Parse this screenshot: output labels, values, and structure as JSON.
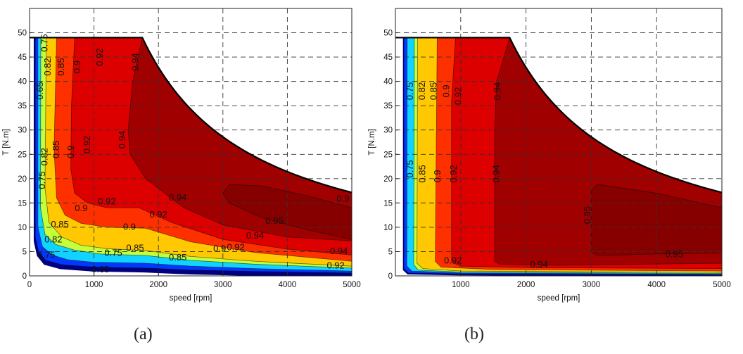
{
  "figure": {
    "captions": [
      "(a)",
      "(b)"
    ]
  },
  "colors": {
    "levels": [
      0.65,
      0.75,
      0.82,
      0.85,
      0.9,
      0.92,
      0.94,
      0.95
    ],
    "fills": [
      "#00007F",
      "#0038FF",
      "#10D4FF",
      "#C4FF3A",
      "#FFC800",
      "#FF3000",
      "#DC0000",
      "#A00000",
      "#860000"
    ],
    "envelope": "#000000"
  },
  "chart_data": [
    {
      "type": "contourf",
      "panel": "(a)",
      "title": "",
      "xlabel": "speed [rpm]",
      "ylabel": "T  [N.m]",
      "xlim": [
        0,
        5000
      ],
      "ylim": [
        0,
        55
      ],
      "xticks": [
        0,
        1000,
        2000,
        3000,
        4000,
        5000
      ],
      "yticks": [
        0,
        5,
        10,
        15,
        20,
        25,
        30,
        35,
        40,
        45,
        50
      ],
      "grid": true,
      "envelope": {
        "description": "max torque 49 N.m up to base speed, then constant power",
        "base_speed": 1750,
        "max_torque": 49,
        "points": [
          [
            0,
            49
          ],
          [
            1750,
            49
          ],
          [
            2000,
            42.9
          ],
          [
            2500,
            34.3
          ],
          [
            3000,
            28.6
          ],
          [
            3500,
            24.5
          ],
          [
            4000,
            21.4
          ],
          [
            4500,
            19.1
          ],
          [
            5000,
            17.2
          ]
        ]
      },
      "contour_levels": [
        0.65,
        0.75,
        0.82,
        0.85,
        0.9,
        0.92,
        0.94,
        0.95
      ],
      "regions": [
        {
          "level": 0.65,
          "boundary": [
            [
              90,
              49
            ],
            [
              90,
              8
            ],
            [
              140,
              5
            ],
            [
              250,
              3.2
            ],
            [
              500,
              2.3
            ],
            [
              1000,
              1.8
            ],
            [
              1800,
              1.6
            ],
            [
              2500,
              1.2
            ],
            [
              3500,
              0.9
            ],
            [
              5000,
              0.6
            ]
          ]
        },
        {
          "level": 0.75,
          "boundary": [
            [
              130,
              49
            ],
            [
              130,
              10
            ],
            [
              200,
              6
            ],
            [
              350,
              4.3
            ],
            [
              600,
              3.3
            ],
            [
              1000,
              2.8
            ],
            [
              1800,
              2.6
            ],
            [
              2500,
              2
            ],
            [
              3500,
              1.5
            ],
            [
              5000,
              1
            ]
          ]
        },
        {
          "level": 0.82,
          "boundary": [
            [
              175,
              49
            ],
            [
              170,
              14
            ],
            [
              240,
              8.5
            ],
            [
              400,
              6.5
            ],
            [
              700,
              5.3
            ],
            [
              1100,
              4.5
            ],
            [
              1800,
              4.2
            ],
            [
              2500,
              3.2
            ],
            [
              3500,
              2.4
            ],
            [
              5000,
              1.6
            ]
          ]
        },
        {
          "level": 0.85,
          "boundary": [
            [
              260,
              49
            ],
            [
              240,
              18
            ],
            [
              300,
              11
            ],
            [
              500,
              8
            ],
            [
              800,
              6.3
            ],
            [
              1200,
              5.6
            ],
            [
              1800,
              5.2
            ],
            [
              2500,
              4
            ],
            [
              3500,
              3
            ],
            [
              5000,
              2
            ]
          ]
        },
        {
          "level": 0.9,
          "boundary": [
            [
              420,
              49
            ],
            [
              380,
              26
            ],
            [
              420,
              16
            ],
            [
              550,
              12.5
            ],
            [
              800,
              10.8
            ],
            [
              1200,
              10
            ],
            [
              1800,
              9.8
            ],
            [
              2500,
              7
            ],
            [
              3500,
              4.8
            ],
            [
              5000,
              3
            ]
          ]
        },
        {
          "level": 0.92,
          "boundary": [
            [
              700,
              49
            ],
            [
              650,
              35
            ],
            [
              640,
              22
            ],
            [
              700,
              17
            ],
            [
              900,
              15
            ],
            [
              1200,
              14
            ],
            [
              1700,
              14
            ],
            [
              2200,
              11
            ],
            [
              3000,
              7.5
            ],
            [
              4000,
              5.5
            ],
            [
              5000,
              4.3
            ]
          ]
        },
        {
          "level": 0.94,
          "boundary": [
            [
              1750,
              49
            ],
            [
              1600,
              40
            ],
            [
              1530,
              30
            ],
            [
              1560,
              25
            ],
            [
              1800,
              20
            ],
            [
              2000,
              18
            ],
            [
              2400,
              14
            ],
            [
              3000,
              10.5
            ],
            [
              4000,
              8
            ],
            [
              5000,
              7.2
            ]
          ]
        },
        {
          "level": 0.95,
          "boundary": [
            [
              3000,
              17
            ],
            [
              3100,
              18.8
            ],
            [
              3600,
              18.5
            ],
            [
              4300,
              16.5
            ],
            [
              5000,
              14
            ],
            [
              5000,
              7.5
            ],
            [
              4300,
              9.5
            ],
            [
              3600,
              12
            ],
            [
              3100,
              15
            ]
          ]
        }
      ],
      "labels": [
        {
          "text": "0.65",
          "x": 1100,
          "y": 1.2
        },
        {
          "text": "0.75",
          "x": 1300,
          "y": 3.5
        },
        {
          "text": "0.85",
          "x": 1550,
          "y": 5.6
        },
        {
          "text": "0.9",
          "x": 1550,
          "y": 10
        },
        {
          "text": "0.92",
          "x": 1200,
          "y": 15.2
        },
        {
          "text": "0.9",
          "x": 800,
          "y": 13.8
        },
        {
          "text": "0.92",
          "x": 2000,
          "y": 12.5
        },
        {
          "text": "0.94",
          "x": 2300,
          "y": 16
        },
        {
          "text": "0.95",
          "x": 3800,
          "y": 11.2
        },
        {
          "text": "0.94",
          "x": 3500,
          "y": 8.2
        },
        {
          "text": "0.92",
          "x": 3200,
          "y": 5.8
        },
        {
          "text": "0.9",
          "x": 2950,
          "y": 5.5
        },
        {
          "text": "0.85",
          "x": 2300,
          "y": 3.7
        },
        {
          "text": "0.94",
          "x": 4800,
          "y": 5
        },
        {
          "text": "0.92",
          "x": 4750,
          "y": 3.2
        },
        {
          "text": "0.9",
          "x": 4950,
          "y": 15.8
        },
        {
          "text": "0.92",
          "x": 1100,
          "y": 45
        },
        {
          "text": "0.9",
          "x": 750,
          "y": 43
        },
        {
          "text": "0.85",
          "x": 500,
          "y": 43
        },
        {
          "text": "0.82",
          "x": 380,
          "y": 43
        },
        {
          "text": "0.75",
          "x": 240,
          "y": 43
        },
        {
          "text": "0.65",
          "x": 170,
          "y": 43
        },
        {
          "text": "0.94",
          "x": 1650,
          "y": 44
        },
        {
          "text": "0.94",
          "x": 1450,
          "y": 28
        },
        {
          "text": "0.92",
          "x": 900,
          "y": 27
        },
        {
          "text": "0.9",
          "x": 650,
          "y": 25.5
        },
        {
          "text": "0.85",
          "x": 420,
          "y": 26
        },
        {
          "text": "0.82",
          "x": 330,
          "y": 24.5
        },
        {
          "text": "0.75",
          "x": 200,
          "y": 22
        },
        {
          "text": "0.85",
          "x": 470,
          "y": 10.5
        },
        {
          "text": "0.82",
          "x": 370,
          "y": 8.5
        },
        {
          "text": "0.75",
          "x": 260,
          "y": 6.5
        }
      ]
    },
    {
      "type": "contourf",
      "panel": "(b)",
      "title": "",
      "xlabel": "speed [rpm]",
      "ylabel": "T  [N.m]",
      "xlim": [
        0,
        5000
      ],
      "ylim": [
        0,
        55
      ],
      "xticks": [
        1000,
        2000,
        3000,
        4000,
        5000
      ],
      "yticks": [
        0,
        5,
        10,
        15,
        20,
        25,
        30,
        35,
        40,
        45,
        50
      ],
      "grid": true,
      "envelope": {
        "description": "max torque 49 N.m up to base speed, then constant power",
        "base_speed": 1750,
        "max_torque": 49,
        "points": [
          [
            0,
            49
          ],
          [
            1750,
            49
          ],
          [
            2000,
            42.9
          ],
          [
            2500,
            34.3
          ],
          [
            3000,
            28.6
          ],
          [
            3500,
            24.5
          ],
          [
            4000,
            21.4
          ],
          [
            4500,
            19.1
          ],
          [
            5000,
            17.2
          ]
        ]
      },
      "contour_levels": [
        0.65,
        0.75,
        0.82,
        0.85,
        0.9,
        0.92,
        0.94,
        0.95
      ],
      "regions": [
        {
          "level": 0.65,
          "boundary": [
            [
              130,
              49
            ],
            [
              130,
              1.5
            ],
            [
              200,
              0.6
            ],
            [
              1000,
              0.4
            ],
            [
              5000,
              0.2
            ]
          ]
        },
        {
          "level": 0.75,
          "boundary": [
            [
              180,
              49
            ],
            [
              175,
              2
            ],
            [
              250,
              1
            ],
            [
              1000,
              0.6
            ],
            [
              5000,
              0.35
            ]
          ]
        },
        {
          "level": 0.82,
          "boundary": [
            [
              290,
              49
            ],
            [
              280,
              2.3
            ],
            [
              350,
              1.2
            ],
            [
              1000,
              0.8
            ],
            [
              5000,
              0.5
            ]
          ]
        },
        {
          "level": 0.85,
          "boundary": [
            [
              340,
              49
            ],
            [
              330,
              2.6
            ],
            [
              420,
              1.5
            ],
            [
              1000,
              1
            ],
            [
              5000,
              0.7
            ]
          ]
        },
        {
          "level": 0.9,
          "boundary": [
            [
              640,
              49
            ],
            [
              610,
              3
            ],
            [
              700,
              1.8
            ],
            [
              1500,
              1.3
            ],
            [
              5000,
              1
            ]
          ]
        },
        {
          "level": 0.92,
          "boundary": [
            [
              920,
              49
            ],
            [
              860,
              36
            ],
            [
              860,
              2.8
            ],
            [
              1000,
              2
            ],
            [
              2000,
              1.7
            ],
            [
              5000,
              1.5
            ]
          ]
        },
        {
          "level": 0.94,
          "boundary": [
            [
              1750,
              49
            ],
            [
              1550,
              40
            ],
            [
              1520,
              30
            ],
            [
              1520,
              3
            ],
            [
              1600,
              2.4
            ],
            [
              2500,
              2.2
            ],
            [
              5000,
              2.6
            ]
          ]
        },
        {
          "level": 0.95,
          "boundary": [
            [
              3000,
              17.5
            ],
            [
              3100,
              18.8
            ],
            [
              4000,
              17
            ],
            [
              5000,
              14
            ],
            [
              5000,
              4.7
            ],
            [
              4000,
              4.5
            ],
            [
              3100,
              4.2
            ],
            [
              3000,
              5
            ]
          ]
        }
      ],
      "labels": [
        {
          "text": "0.75",
          "x": 230,
          "y": 22
        },
        {
          "text": "0.85",
          "x": 420,
          "y": 21
        },
        {
          "text": "0.9",
          "x": 650,
          "y": 20.5
        },
        {
          "text": "0.92",
          "x": 900,
          "y": 21
        },
        {
          "text": "0.94",
          "x": 1550,
          "y": 21
        },
        {
          "text": "0.75",
          "x": 230,
          "y": 38
        },
        {
          "text": "0.82",
          "x": 330,
          "y": 38
        },
        {
          "text": "0.85",
          "x": 420,
          "y": 38
        },
        {
          "text": "0.9",
          "x": 700,
          "y": 38
        },
        {
          "text": "0.92",
          "x": 970,
          "y": 37
        },
        {
          "text": "0.94",
          "x": 1570,
          "y": 38
        },
        {
          "text": "0.95",
          "x": 2950,
          "y": 12.5
        },
        {
          "text": "0.95",
          "x": 4270,
          "y": 4.3
        },
        {
          "text": "0.94",
          "x": 2200,
          "y": 2.2
        },
        {
          "text": "0.92",
          "x": 880,
          "y": 3
        }
      ]
    }
  ]
}
